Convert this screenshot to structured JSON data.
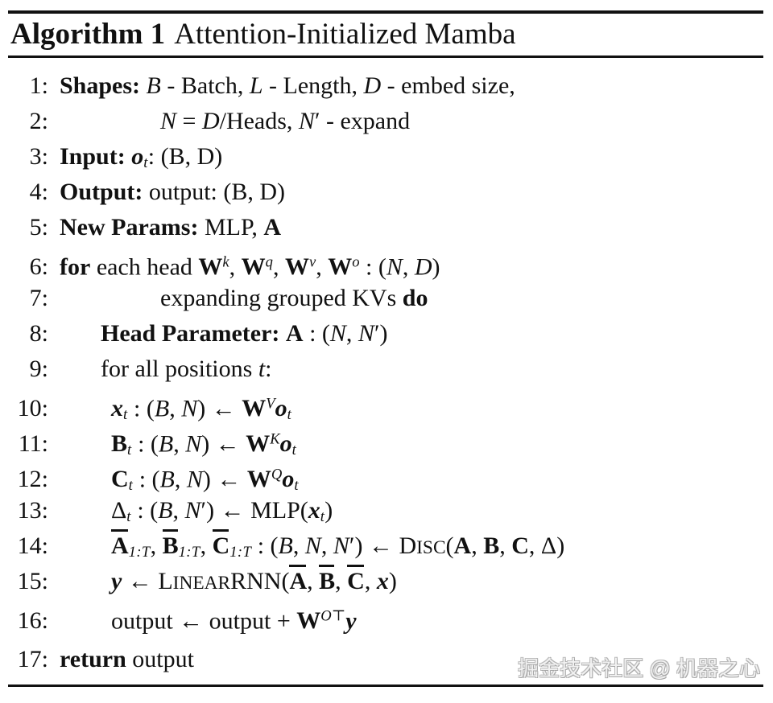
{
  "title": {
    "label": "Algorithm 1",
    "name": "Attention-Initialized Mamba"
  },
  "watermark": {
    "text": "掘金技术社区 @ 机器之心"
  },
  "colors": {
    "text": "#111111",
    "background": "#ffffff",
    "rule": "#111111",
    "watermark_fill": "#f2f2f2",
    "watermark_outline": "#a6a6a6"
  },
  "algorithm": {
    "lines": [
      {
        "num": "1:",
        "indent": 0,
        "segments": [
          {
            "t": "Shapes:",
            "s": "b"
          },
          {
            "t": " "
          },
          {
            "t": "B",
            "s": "i"
          },
          {
            "t": " - Batch, "
          },
          {
            "t": "L",
            "s": "i"
          },
          {
            "t": " - Length, "
          },
          {
            "t": "D",
            "s": "i"
          },
          {
            "t": " - embed size,"
          }
        ]
      },
      {
        "num": "2:",
        "indent": 3,
        "segments": [
          {
            "t": "N",
            "s": "i"
          },
          {
            "t": " = "
          },
          {
            "t": "D",
            "s": "i"
          },
          {
            "t": "/Heads, "
          },
          {
            "t": "N",
            "s": "i"
          },
          {
            "t": "′"
          },
          {
            "t": " - expand"
          }
        ]
      },
      {
        "num": "3:",
        "indent": 0,
        "segments": [
          {
            "t": "Input:",
            "s": "b"
          },
          {
            "t": " "
          },
          {
            "t": "o",
            "s": "bi",
            "sub": "t"
          },
          {
            "t": ": (B, D)"
          }
        ]
      },
      {
        "num": "4:",
        "indent": 0,
        "segments": [
          {
            "t": "Output:",
            "s": "b"
          },
          {
            "t": " output: (B, D)"
          }
        ]
      },
      {
        "num": "5:",
        "indent": 0,
        "segments": [
          {
            "t": "New Params:",
            "s": "b"
          },
          {
            "t": " MLP, "
          },
          {
            "t": "A",
            "s": "b"
          }
        ]
      },
      {
        "num": "6:",
        "indent": 0,
        "segments": [
          {
            "t": "for",
            "s": "b"
          },
          {
            "t": " each head "
          },
          {
            "t": "W",
            "s": "b",
            "sup": "k"
          },
          {
            "t": ", "
          },
          {
            "t": "W",
            "s": "b",
            "sup": "q"
          },
          {
            "t": ", "
          },
          {
            "t": "W",
            "s": "b",
            "sup": "v"
          },
          {
            "t": ", "
          },
          {
            "t": "W",
            "s": "b",
            "sup": "o"
          },
          {
            "t": " : ("
          },
          {
            "t": "N",
            "s": "i"
          },
          {
            "t": ", "
          },
          {
            "t": "D",
            "s": "i"
          },
          {
            "t": ")"
          }
        ]
      },
      {
        "num": "7:",
        "indent": 3,
        "segments": [
          {
            "t": "expanding grouped KVs "
          },
          {
            "t": "do",
            "s": "b"
          }
        ]
      },
      {
        "num": "8:",
        "indent": 1,
        "segments": [
          {
            "t": "Head Parameter:",
            "s": "b"
          },
          {
            "t": " "
          },
          {
            "t": "A",
            "s": "b"
          },
          {
            "t": " : ("
          },
          {
            "t": "N",
            "s": "i"
          },
          {
            "t": ", "
          },
          {
            "t": "N",
            "s": "i"
          },
          {
            "t": "′)"
          }
        ]
      },
      {
        "num": "9:",
        "indent": 1,
        "segments": [
          {
            "t": "for all positions "
          },
          {
            "t": "t",
            "s": "i"
          },
          {
            "t": ":"
          }
        ]
      },
      {
        "num": "10:",
        "indent": 2,
        "segments": [
          {
            "t": "x",
            "s": "bi",
            "sub": "t"
          },
          {
            "t": " : ("
          },
          {
            "t": "B",
            "s": "i"
          },
          {
            "t": ", "
          },
          {
            "t": "N",
            "s": "i"
          },
          {
            "t": ") ← "
          },
          {
            "t": "W",
            "s": "b",
            "sup": "V"
          },
          {
            "t": "o",
            "s": "bi",
            "sub": "t"
          }
        ]
      },
      {
        "num": "11:",
        "indent": 2,
        "segments": [
          {
            "t": "B",
            "s": "b",
            "sub": "t"
          },
          {
            "t": " : ("
          },
          {
            "t": "B",
            "s": "i"
          },
          {
            "t": ", "
          },
          {
            "t": "N",
            "s": "i"
          },
          {
            "t": ") ← "
          },
          {
            "t": "W",
            "s": "b",
            "sup": "K"
          },
          {
            "t": "o",
            "s": "bi",
            "sub": "t"
          }
        ]
      },
      {
        "num": "12:",
        "indent": 2,
        "segments": [
          {
            "t": "C",
            "s": "b",
            "sub": "t"
          },
          {
            "t": " : ("
          },
          {
            "t": "B",
            "s": "i"
          },
          {
            "t": ", "
          },
          {
            "t": "N",
            "s": "i"
          },
          {
            "t": ") ← "
          },
          {
            "t": "W",
            "s": "b",
            "sup": "Q"
          },
          {
            "t": "o",
            "s": "bi",
            "sub": "t"
          }
        ]
      },
      {
        "num": "13:",
        "indent": 2,
        "segments": [
          {
            "t": "Δ",
            "sub": "t"
          },
          {
            "t": " : ("
          },
          {
            "t": "B",
            "s": "i"
          },
          {
            "t": ", "
          },
          {
            "t": "N",
            "s": "i"
          },
          {
            "t": "′) ← MLP("
          },
          {
            "t": "x",
            "s": "bi",
            "sub": "t"
          },
          {
            "t": ")"
          }
        ]
      },
      {
        "num": "14:",
        "indent": 2,
        "segments": [
          {
            "t": "A",
            "s": "b",
            "ov": true,
            "sub": "1:T"
          },
          {
            "t": ", "
          },
          {
            "t": "B",
            "s": "b",
            "ov": true,
            "sub": "1:T"
          },
          {
            "t": ", "
          },
          {
            "t": "C",
            "s": "b",
            "ov": true,
            "sub": "1:T"
          },
          {
            "t": " : ("
          },
          {
            "t": "B",
            "s": "i"
          },
          {
            "t": ", "
          },
          {
            "t": "N",
            "s": "i"
          },
          {
            "t": ", "
          },
          {
            "t": "N",
            "s": "i"
          },
          {
            "t": "′) ← "
          },
          {
            "t": "Disc",
            "sc": true
          },
          {
            "t": "("
          },
          {
            "t": "A",
            "s": "b"
          },
          {
            "t": ", "
          },
          {
            "t": "B",
            "s": "b"
          },
          {
            "t": ", "
          },
          {
            "t": "C",
            "s": "b"
          },
          {
            "t": ", Δ)"
          }
        ]
      },
      {
        "num": "15:",
        "indent": 2,
        "segments": [
          {
            "t": "y",
            "s": "bi"
          },
          {
            "t": " ← "
          },
          {
            "t": "Linear",
            "sc": true
          },
          {
            "t": "RNN("
          },
          {
            "t": "A",
            "s": "b",
            "ov": true
          },
          {
            "t": ", "
          },
          {
            "t": "B",
            "s": "b",
            "ov": true
          },
          {
            "t": ", "
          },
          {
            "t": "C",
            "s": "b",
            "ov": true
          },
          {
            "t": ", "
          },
          {
            "t": "x",
            "s": "bi"
          },
          {
            "t": ")"
          }
        ]
      },
      {
        "num": "16:",
        "indent": 2,
        "segments": [
          {
            "t": "output ← output + "
          },
          {
            "t": "W",
            "s": "b",
            "sup": "O⊤"
          },
          {
            "t": "y",
            "s": "bi"
          }
        ]
      },
      {
        "num": "17:",
        "indent": 0,
        "gap_before": true,
        "segments": [
          {
            "t": "return",
            "s": "b"
          },
          {
            "t": " output"
          }
        ]
      }
    ]
  }
}
